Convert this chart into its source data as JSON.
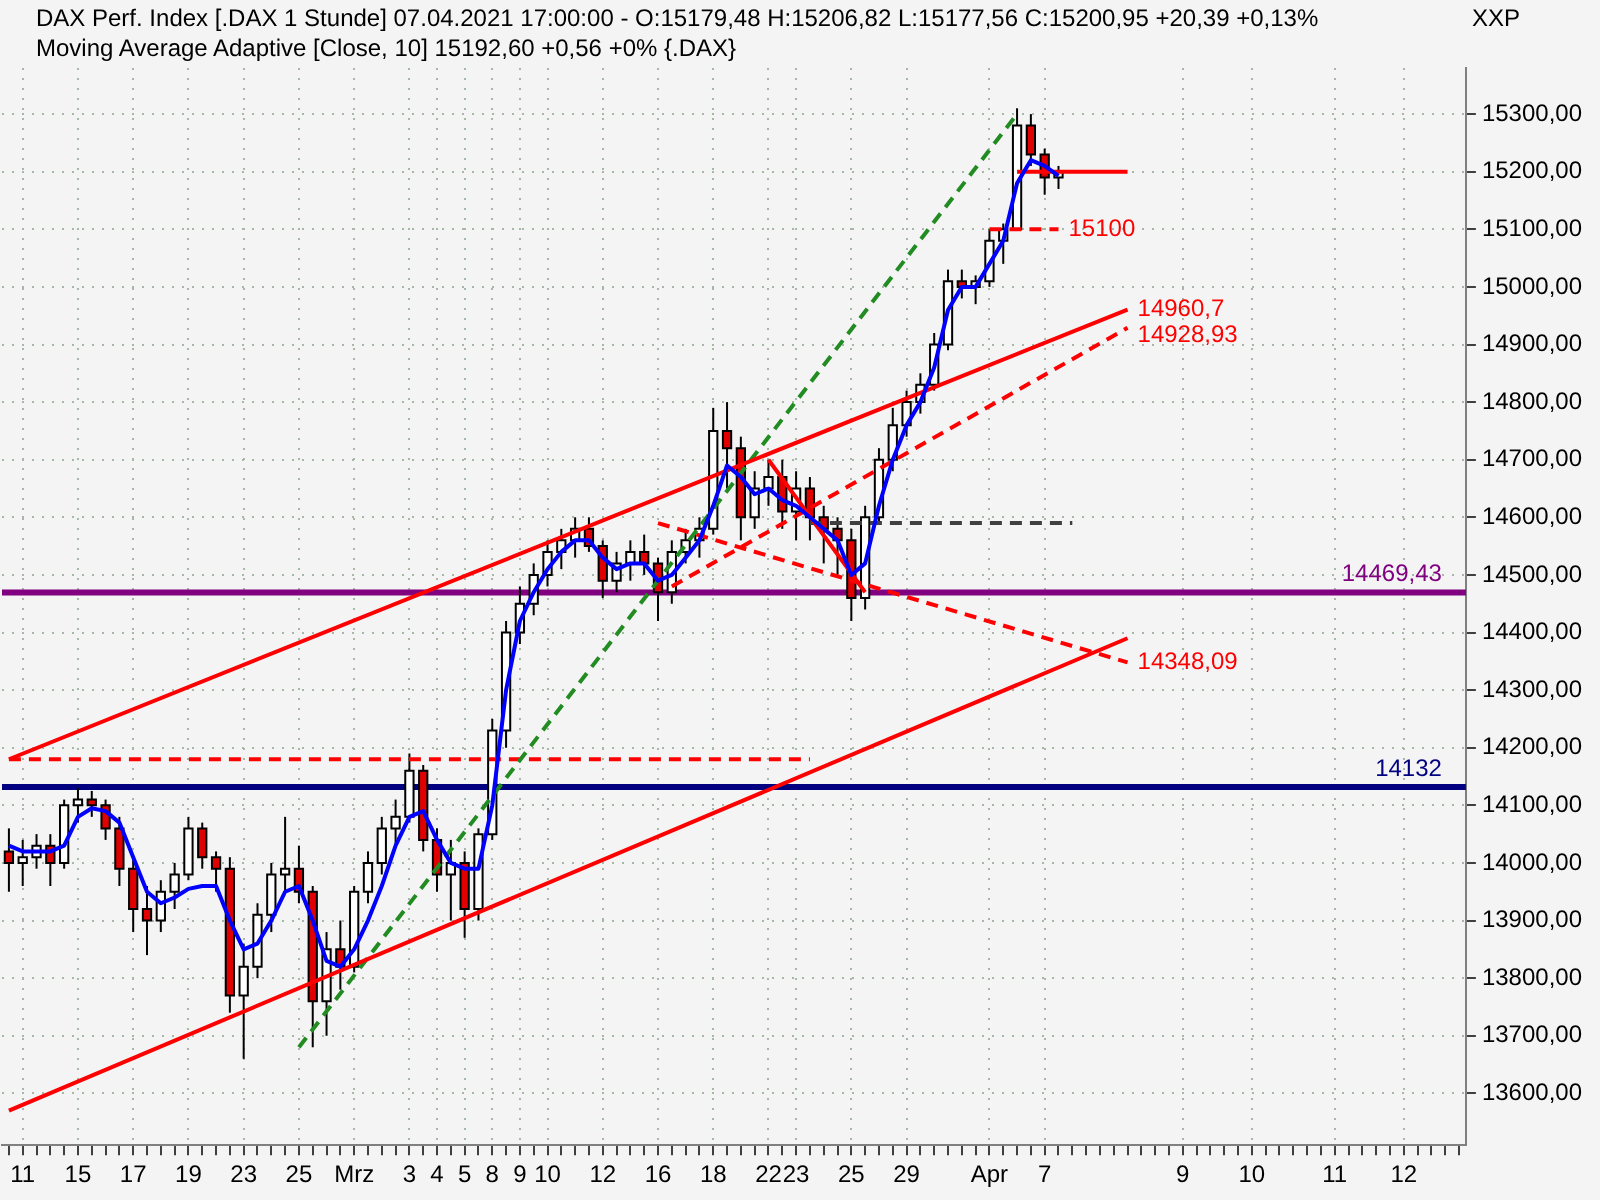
{
  "chart_data": {
    "type": "candlestick",
    "title": "DAX Perf. Index [.DAX  1 Stunde] 07.04.2021 17:00:00 - O:15179,48 H:15206,82 L:15177,56 C:15200,95 +20,39 +0,13%",
    "subtitle": "Moving Average Adaptive [Close, 10] 15192,60 +0,56 +0% {.DAX}",
    "categories": [
      null,
      "11",
      null,
      null,
      null,
      "15",
      null,
      null,
      null,
      "17",
      null,
      null,
      null,
      "19",
      null,
      null,
      null,
      "23",
      null,
      null,
      null,
      "25",
      null,
      null,
      null,
      "Mrz",
      null,
      null,
      null,
      "3",
      null,
      "4",
      null,
      "5",
      null,
      "8",
      null,
      "9",
      null,
      "10",
      null,
      null,
      null,
      "12",
      null,
      null,
      null,
      "16",
      null,
      null,
      null,
      "18",
      null,
      null,
      null,
      "22",
      null,
      "23",
      null,
      null,
      null,
      "25",
      null,
      null,
      null,
      "29",
      null,
      null,
      null,
      null,
      null,
      "Apr",
      null,
      null,
      null,
      "7",
      null,
      null,
      null,
      null,
      null,
      null,
      null,
      null,
      null,
      "9",
      null,
      null,
      null,
      null,
      "10",
      null,
      null,
      null,
      null,
      null,
      "11",
      null,
      null,
      null,
      null,
      "12",
      null,
      null,
      null,
      null
    ],
    "ohlc": [
      [
        14020,
        14060,
        13950,
        14000
      ],
      [
        14000,
        14040,
        13960,
        14010
      ],
      [
        14010,
        14050,
        13990,
        14030
      ],
      [
        14030,
        14050,
        13960,
        14000
      ],
      [
        14000,
        14110,
        13990,
        14100
      ],
      [
        14100,
        14130,
        14070,
        14110
      ],
      [
        14110,
        14125,
        14080,
        14100
      ],
      [
        14100,
        14110,
        14040,
        14060
      ],
      [
        14060,
        14080,
        13960,
        13990
      ],
      [
        13990,
        14010,
        13880,
        13920
      ],
      [
        13920,
        13960,
        13840,
        13900
      ],
      [
        13900,
        13970,
        13880,
        13950
      ],
      [
        13950,
        14000,
        13920,
        13980
      ],
      [
        13980,
        14080,
        13970,
        14060
      ],
      [
        14060,
        14070,
        13990,
        14010
      ],
      [
        14010,
        14020,
        13950,
        13990
      ],
      [
        13990,
        14010,
        13740,
        13770
      ],
      [
        13770,
        13860,
        13660,
        13820
      ],
      [
        13820,
        13930,
        13800,
        13910
      ],
      [
        13910,
        14000,
        13880,
        13980
      ],
      [
        13980,
        14080,
        13950,
        13990
      ],
      [
        13990,
        14030,
        13930,
        13950
      ],
      [
        13950,
        13960,
        13680,
        13760
      ],
      [
        13760,
        13880,
        13700,
        13850
      ],
      [
        13850,
        13900,
        13780,
        13820
      ],
      [
        13820,
        13960,
        13810,
        13950
      ],
      [
        13950,
        14020,
        13930,
        14000
      ],
      [
        14000,
        14080,
        13980,
        14060
      ],
      [
        14060,
        14110,
        14030,
        14080
      ],
      [
        14080,
        14190,
        14070,
        14160
      ],
      [
        14160,
        14170,
        14020,
        14040
      ],
      [
        14040,
        14060,
        13950,
        13980
      ],
      [
        13980,
        14040,
        13900,
        14000
      ],
      [
        14000,
        14020,
        13870,
        13920
      ],
      [
        13920,
        14060,
        13900,
        14050
      ],
      [
        14050,
        14250,
        14040,
        14230
      ],
      [
        14230,
        14420,
        14200,
        14400
      ],
      [
        14400,
        14480,
        14380,
        14450
      ],
      [
        14450,
        14520,
        14430,
        14500
      ],
      [
        14500,
        14560,
        14480,
        14540
      ],
      [
        14540,
        14580,
        14510,
        14560
      ],
      [
        14560,
        14600,
        14530,
        14580
      ],
      [
        14580,
        14600,
        14540,
        14550
      ],
      [
        14550,
        14560,
        14460,
        14490
      ],
      [
        14490,
        14540,
        14470,
        14520
      ],
      [
        14520,
        14560,
        14490,
        14540
      ],
      [
        14540,
        14570,
        14500,
        14520
      ],
      [
        14520,
        14530,
        14420,
        14470
      ],
      [
        14470,
        14560,
        14450,
        14540
      ],
      [
        14540,
        14580,
        14520,
        14560
      ],
      [
        14560,
        14600,
        14530,
        14580
      ],
      [
        14580,
        14790,
        14570,
        14750
      ],
      [
        14750,
        14800,
        14650,
        14720
      ],
      [
        14720,
        14740,
        14560,
        14600
      ],
      [
        14600,
        14680,
        14580,
        14650
      ],
      [
        14650,
        14700,
        14620,
        14670
      ],
      [
        14670,
        14700,
        14580,
        14610
      ],
      [
        14610,
        14680,
        14560,
        14650
      ],
      [
        14650,
        14670,
        14560,
        14600
      ],
      [
        14600,
        14620,
        14520,
        14580
      ],
      [
        14580,
        14600,
        14500,
        14560
      ],
      [
        14560,
        14580,
        14420,
        14460
      ],
      [
        14460,
        14620,
        14440,
        14600
      ],
      [
        14600,
        14720,
        14590,
        14700
      ],
      [
        14700,
        14790,
        14680,
        14760
      ],
      [
        14760,
        14820,
        14740,
        14800
      ],
      [
        14800,
        14850,
        14780,
        14830
      ],
      [
        14830,
        14920,
        14820,
        14900
      ],
      [
        14900,
        15030,
        14890,
        15010
      ],
      [
        15010,
        15030,
        14980,
        15000
      ],
      [
        15000,
        15020,
        14970,
        15010
      ],
      [
        15010,
        15100,
        15000,
        15080
      ],
      [
        15080,
        15110,
        15040,
        15100
      ],
      [
        15100,
        15310,
        15100,
        15280
      ],
      [
        15280,
        15300,
        15210,
        15230
      ],
      [
        15230,
        15240,
        15160,
        15190
      ],
      [
        15190,
        15210,
        15170,
        15200
      ],
      null,
      null,
      null,
      null,
      null,
      null,
      null,
      null,
      null,
      null,
      null,
      null,
      null,
      null,
      null,
      null,
      null,
      null,
      null,
      null,
      null,
      null,
      null,
      null,
      null,
      null,
      null,
      null,
      null
    ],
    "series": [
      {
        "type": "line",
        "color": "#0000ff",
        "line_style": "solid",
        "values": [
          14030,
          14020,
          14020,
          14020,
          14030,
          14080,
          14095,
          14090,
          14070,
          14010,
          13950,
          13930,
          13940,
          13955,
          13960,
          13960,
          13900,
          13850,
          13860,
          13900,
          13950,
          13960,
          13900,
          13830,
          13820,
          13850,
          13900,
          13960,
          14030,
          14080,
          14090,
          14040,
          14000,
          13990,
          13990,
          14100,
          14300,
          14420,
          14470,
          14510,
          14540,
          14560,
          14560,
          14530,
          14510,
          14520,
          14520,
          14490,
          14500,
          14530,
          14560,
          14620,
          14690,
          14670,
          14640,
          14650,
          14630,
          14620,
          14600,
          14580,
          14560,
          14500,
          14520,
          14620,
          14700,
          14760,
          14800,
          14860,
          14960,
          15000,
          15000,
          15040,
          15080,
          15180,
          15220,
          15210,
          15192.6,
          null,
          null,
          null,
          null,
          null,
          null,
          null,
          null,
          null,
          null,
          null,
          null,
          null,
          null,
          null,
          null,
          null,
          null,
          null,
          null,
          null,
          null,
          null,
          null,
          null,
          null,
          null,
          null,
          null
        ]
      },
      {
        "type": "line",
        "color": "#ff0000",
        "line_style": "solid",
        "values": [
          14180,
          null,
          null,
          null,
          null,
          null,
          null,
          null,
          null,
          null,
          null,
          null,
          null,
          null,
          null,
          null,
          null,
          null,
          null,
          null,
          null,
          null,
          null,
          null,
          null,
          null,
          null,
          null,
          null,
          null,
          null,
          null,
          null,
          null,
          null,
          null,
          null,
          null,
          null,
          null,
          null,
          null,
          null,
          null,
          null,
          null,
          null,
          null,
          null,
          null,
          null,
          null,
          null,
          null,
          null,
          null,
          null,
          null,
          null,
          null,
          null,
          null,
          null,
          null,
          null,
          null,
          null,
          null,
          null,
          null,
          null,
          null,
          null,
          null,
          null,
          null,
          null,
          null,
          null,
          null,
          null,
          14960.7,
          null,
          null,
          null,
          null,
          null,
          null,
          null,
          null,
          null,
          null,
          null,
          null,
          null,
          null,
          null,
          null,
          null,
          null,
          null,
          null,
          null,
          null,
          null,
          null
        ],
        "value_labels": [
          null,
          null,
          null,
          null,
          null,
          null,
          null,
          null,
          null,
          null,
          null,
          null,
          null,
          null,
          null,
          null,
          null,
          null,
          null,
          null,
          null,
          null,
          null,
          null,
          null,
          null,
          null,
          null,
          null,
          null,
          null,
          null,
          null,
          null,
          null,
          null,
          null,
          null,
          null,
          null,
          null,
          null,
          null,
          null,
          null,
          null,
          null,
          null,
          null,
          null,
          null,
          null,
          null,
          null,
          null,
          null,
          null,
          null,
          null,
          null,
          null,
          null,
          null,
          null,
          null,
          null,
          null,
          null,
          null,
          null,
          null,
          null,
          null,
          null,
          null,
          null,
          null,
          null,
          null,
          null,
          null,
          "14960,7",
          null,
          null,
          null,
          null,
          null,
          null,
          null,
          null,
          null,
          null,
          null,
          null,
          null,
          null,
          null,
          null,
          null,
          null,
          null,
          null,
          null,
          null,
          null,
          null
        ]
      },
      {
        "type": "line",
        "color": "#ff0000",
        "line_style": "solid",
        "values": [
          13570,
          null,
          null,
          null,
          null,
          null,
          null,
          null,
          null,
          null,
          null,
          null,
          null,
          null,
          null,
          null,
          null,
          null,
          null,
          null,
          null,
          null,
          null,
          null,
          null,
          null,
          null,
          null,
          null,
          null,
          null,
          null,
          null,
          null,
          null,
          null,
          null,
          null,
          null,
          null,
          null,
          null,
          null,
          null,
          null,
          null,
          null,
          null,
          null,
          null,
          null,
          null,
          null,
          null,
          null,
          null,
          null,
          null,
          null,
          null,
          null,
          null,
          null,
          null,
          null,
          null,
          null,
          null,
          null,
          null,
          null,
          null,
          null,
          null,
          null,
          null,
          null,
          null,
          null,
          null,
          null,
          14390,
          null,
          null,
          null,
          null,
          null,
          null,
          null,
          null,
          null,
          null,
          null,
          null,
          null,
          null,
          null,
          null,
          null,
          null,
          null,
          null,
          null,
          null,
          null,
          null
        ]
      },
      {
        "type": "line",
        "color": "#228b22",
        "line_style": "dashed",
        "values": [
          null,
          null,
          null,
          null,
          null,
          null,
          null,
          null,
          null,
          null,
          null,
          null,
          null,
          null,
          null,
          null,
          null,
          null,
          null,
          null,
          null,
          13680,
          null,
          null,
          null,
          null,
          null,
          null,
          null,
          null,
          null,
          null,
          null,
          null,
          null,
          null,
          null,
          null,
          null,
          null,
          null,
          null,
          null,
          null,
          null,
          null,
          null,
          null,
          null,
          null,
          null,
          null,
          null,
          null,
          null,
          null,
          null,
          null,
          null,
          null,
          null,
          null,
          null,
          null,
          null,
          null,
          null,
          null,
          null,
          null,
          null,
          null,
          null,
          15300,
          null,
          null,
          null,
          null,
          null,
          null,
          null,
          null,
          null,
          null,
          null,
          null,
          null,
          null,
          null,
          null,
          null,
          null,
          null,
          null,
          null,
          null,
          null,
          null,
          null,
          null,
          null,
          null,
          null,
          null,
          null,
          null
        ]
      },
      {
        "type": "line",
        "color": "#ff0000",
        "line_style": "dashed",
        "values": [
          14180,
          null,
          null,
          null,
          null,
          null,
          null,
          null,
          null,
          null,
          null,
          null,
          null,
          null,
          null,
          null,
          null,
          null,
          null,
          null,
          null,
          null,
          null,
          null,
          null,
          null,
          null,
          null,
          null,
          null,
          null,
          null,
          null,
          null,
          null,
          null,
          null,
          null,
          null,
          null,
          null,
          null,
          null,
          null,
          null,
          null,
          null,
          null,
          null,
          null,
          null,
          null,
          null,
          null,
          null,
          null,
          null,
          null,
          14180,
          null,
          null,
          null,
          null,
          null,
          null,
          null,
          null,
          null,
          null,
          null,
          null,
          null,
          null,
          null,
          null,
          null,
          null,
          null,
          null,
          null,
          null,
          null,
          null,
          null,
          null,
          null,
          null,
          null,
          null,
          null,
          null,
          null,
          null,
          null,
          null,
          null,
          null,
          null,
          null,
          null,
          null,
          null,
          null,
          null,
          null,
          null
        ]
      },
      {
        "type": "line",
        "color": "#ff0000",
        "line_style": "dashed",
        "values": [
          null,
          null,
          null,
          null,
          null,
          null,
          null,
          null,
          null,
          null,
          null,
          null,
          null,
          null,
          null,
          null,
          null,
          null,
          null,
          null,
          null,
          null,
          null,
          null,
          null,
          null,
          null,
          null,
          null,
          null,
          null,
          null,
          null,
          null,
          null,
          null,
          null,
          null,
          null,
          null,
          null,
          null,
          null,
          null,
          null,
          null,
          null,
          null,
          null,
          null,
          null,
          null,
          null,
          null,
          null,
          null,
          null,
          null,
          null,
          null,
          null,
          null,
          null,
          null,
          null,
          null,
          null,
          null,
          null,
          null,
          null,
          15100,
          null,
          null,
          null,
          null,
          15100,
          null,
          null,
          null,
          null,
          null,
          null,
          null,
          null,
          null,
          null,
          null,
          null,
          null,
          null,
          null,
          null,
          null,
          null,
          null,
          null,
          null,
          null,
          null,
          null,
          null,
          null,
          null,
          null,
          null
        ],
        "value_labels": [
          null,
          null,
          null,
          null,
          null,
          null,
          null,
          null,
          null,
          null,
          null,
          null,
          null,
          null,
          null,
          null,
          null,
          null,
          null,
          null,
          null,
          null,
          null,
          null,
          null,
          null,
          null,
          null,
          null,
          null,
          null,
          null,
          null,
          null,
          null,
          null,
          null,
          null,
          null,
          null,
          null,
          null,
          null,
          null,
          null,
          null,
          null,
          null,
          null,
          null,
          null,
          null,
          null,
          null,
          null,
          null,
          null,
          null,
          null,
          null,
          null,
          null,
          null,
          null,
          null,
          null,
          null,
          null,
          null,
          null,
          null,
          null,
          null,
          null,
          null,
          null,
          "15100",
          null,
          null,
          null,
          null,
          null,
          null,
          null,
          null,
          null,
          null,
          null,
          null,
          null,
          null,
          null,
          null,
          null,
          null,
          null,
          null,
          null,
          null,
          null,
          null,
          null,
          null,
          null,
          null,
          null
        ]
      },
      {
        "type": "line",
        "color": "#ff0000",
        "line_style": "solid",
        "values": [
          null,
          null,
          null,
          null,
          null,
          null,
          null,
          null,
          null,
          null,
          null,
          null,
          null,
          null,
          null,
          null,
          null,
          null,
          null,
          null,
          null,
          null,
          null,
          null,
          null,
          null,
          null,
          null,
          null,
          null,
          null,
          null,
          null,
          null,
          null,
          null,
          null,
          null,
          null,
          null,
          null,
          null,
          null,
          null,
          null,
          null,
          null,
          null,
          null,
          null,
          null,
          null,
          null,
          null,
          null,
          null,
          null,
          null,
          null,
          null,
          null,
          null,
          null,
          null,
          null,
          null,
          null,
          null,
          null,
          null,
          null,
          null,
          null,
          15200,
          null,
          null,
          null,
          null,
          null,
          null,
          null,
          15200,
          null,
          null,
          null,
          null,
          null,
          null,
          null,
          null,
          null,
          null,
          null,
          null,
          null,
          null,
          null,
          null,
          null,
          null,
          null,
          null,
          null,
          null,
          null,
          null
        ]
      },
      {
        "type": "line",
        "color": "#ff0000",
        "line_style": "dashed",
        "values": [
          null,
          null,
          null,
          null,
          null,
          null,
          null,
          null,
          null,
          null,
          null,
          null,
          null,
          null,
          null,
          null,
          null,
          null,
          null,
          null,
          null,
          null,
          null,
          null,
          null,
          null,
          null,
          null,
          null,
          null,
          null,
          null,
          null,
          null,
          null,
          null,
          null,
          null,
          null,
          null,
          null,
          null,
          null,
          null,
          null,
          null,
          null,
          14590,
          null,
          null,
          null,
          null,
          null,
          null,
          null,
          null,
          null,
          null,
          null,
          null,
          null,
          null,
          null,
          null,
          null,
          null,
          null,
          null,
          null,
          null,
          null,
          null,
          null,
          null,
          null,
          null,
          null,
          null,
          null,
          null,
          null,
          14348.09,
          null,
          null,
          null,
          null,
          null,
          null,
          null,
          null,
          null,
          null,
          null,
          null,
          null,
          null,
          null,
          null,
          null,
          null,
          null,
          null,
          null,
          null,
          null,
          null
        ],
        "value_labels": [
          null,
          null,
          null,
          null,
          null,
          null,
          null,
          null,
          null,
          null,
          null,
          null,
          null,
          null,
          null,
          null,
          null,
          null,
          null,
          null,
          null,
          null,
          null,
          null,
          null,
          null,
          null,
          null,
          null,
          null,
          null,
          null,
          null,
          null,
          null,
          null,
          null,
          null,
          null,
          null,
          null,
          null,
          null,
          null,
          null,
          null,
          null,
          null,
          null,
          null,
          null,
          null,
          null,
          null,
          null,
          null,
          null,
          null,
          null,
          null,
          null,
          null,
          null,
          null,
          null,
          null,
          null,
          null,
          null,
          null,
          null,
          null,
          null,
          null,
          null,
          null,
          null,
          null,
          null,
          null,
          null,
          "14348,09",
          null,
          null,
          null,
          null,
          null,
          null,
          null,
          null,
          null,
          null,
          null,
          null,
          null,
          null,
          null,
          null,
          null,
          null,
          null,
          null,
          null,
          null,
          null,
          null
        ]
      },
      {
        "type": "line",
        "color": "#ff0000",
        "line_style": "dashed",
        "values": [
          null,
          null,
          null,
          null,
          null,
          null,
          null,
          null,
          null,
          null,
          null,
          null,
          null,
          null,
          null,
          null,
          null,
          null,
          null,
          null,
          null,
          null,
          null,
          null,
          null,
          null,
          null,
          null,
          null,
          null,
          null,
          null,
          null,
          null,
          null,
          null,
          null,
          null,
          null,
          null,
          null,
          null,
          null,
          null,
          null,
          null,
          null,
          null,
          14480,
          null,
          null,
          null,
          null,
          null,
          null,
          null,
          null,
          null,
          null,
          null,
          null,
          null,
          null,
          null,
          null,
          null,
          null,
          null,
          null,
          null,
          null,
          null,
          null,
          null,
          null,
          null,
          null,
          null,
          null,
          null,
          null,
          14928.93,
          null,
          null,
          null,
          null,
          null,
          null,
          null,
          null,
          null,
          null,
          null,
          null,
          null,
          null,
          null,
          null,
          null,
          null,
          null,
          null,
          null,
          null,
          null,
          null
        ],
        "value_labels": [
          null,
          null,
          null,
          null,
          null,
          null,
          null,
          null,
          null,
          null,
          null,
          null,
          null,
          null,
          null,
          null,
          null,
          null,
          null,
          null,
          null,
          null,
          null,
          null,
          null,
          null,
          null,
          null,
          null,
          null,
          null,
          null,
          null,
          null,
          null,
          null,
          null,
          null,
          null,
          null,
          null,
          null,
          null,
          null,
          null,
          null,
          null,
          null,
          null,
          null,
          null,
          null,
          null,
          null,
          null,
          null,
          null,
          null,
          null,
          null,
          null,
          null,
          null,
          null,
          null,
          null,
          null,
          null,
          null,
          null,
          null,
          null,
          null,
          null,
          null,
          null,
          null,
          null,
          null,
          null,
          null,
          "14928,93",
          null,
          null,
          null,
          null,
          null,
          null,
          null,
          null,
          null,
          null,
          null,
          null,
          null,
          null,
          null,
          null,
          null,
          null,
          null,
          null,
          null,
          null,
          null,
          null
        ]
      },
      {
        "type": "line",
        "color": "#ff0000",
        "line_style": "solid",
        "values": [
          null,
          null,
          null,
          null,
          null,
          null,
          null,
          null,
          null,
          null,
          null,
          null,
          null,
          null,
          null,
          null,
          null,
          null,
          null,
          null,
          null,
          null,
          null,
          null,
          null,
          null,
          null,
          null,
          null,
          null,
          null,
          null,
          null,
          null,
          null,
          null,
          null,
          null,
          null,
          null,
          null,
          null,
          null,
          null,
          null,
          null,
          null,
          null,
          null,
          null,
          null,
          null,
          null,
          null,
          null,
          14700,
          null,
          null,
          null,
          null,
          null,
          null,
          14470,
          null,
          null,
          null,
          null,
          null,
          null,
          null,
          null,
          null,
          null,
          null,
          null,
          null,
          null,
          null,
          null,
          null,
          null,
          null,
          null,
          null,
          null,
          null,
          null,
          null,
          null,
          null,
          null,
          null,
          null,
          null,
          null,
          null,
          null,
          null,
          null,
          null,
          null,
          null,
          null,
          null,
          null,
          null
        ]
      },
      {
        "type": "line",
        "color": "#404040",
        "line_style": "dashed",
        "values": [
          null,
          null,
          null,
          null,
          null,
          null,
          null,
          null,
          null,
          null,
          null,
          null,
          null,
          null,
          null,
          null,
          null,
          null,
          null,
          null,
          null,
          null,
          null,
          null,
          null,
          null,
          null,
          null,
          null,
          null,
          null,
          null,
          null,
          null,
          null,
          null,
          null,
          null,
          null,
          null,
          null,
          null,
          null,
          null,
          null,
          null,
          null,
          null,
          null,
          null,
          null,
          null,
          null,
          null,
          null,
          null,
          null,
          null,
          14590,
          null,
          null,
          null,
          null,
          null,
          null,
          null,
          null,
          null,
          null,
          null,
          null,
          null,
          null,
          null,
          null,
          null,
          null,
          14590,
          null,
          null,
          null,
          null,
          null,
          null,
          null,
          null,
          null,
          null,
          null,
          null,
          null,
          null,
          null,
          null,
          null,
          null,
          null,
          null,
          null,
          null,
          null,
          null,
          null,
          null,
          null,
          null
        ]
      }
    ],
    "ylim": [
      13510,
      15380
    ],
    "yticks": [
      {
        "value": 13600,
        "label": "13600,00"
      },
      {
        "value": 13700,
        "label": "13700,00"
      },
      {
        "value": 13800,
        "label": "13800,00"
      },
      {
        "value": 13900,
        "label": "13900,00"
      },
      {
        "value": 14000,
        "label": "14000,00"
      },
      {
        "value": 14100,
        "label": "14100,00"
      },
      {
        "value": 14200,
        "label": "14200,00"
      },
      {
        "value": 14300,
        "label": "14300,00"
      },
      {
        "value": 14400,
        "label": "14400,00"
      },
      {
        "value": 14500,
        "label": "14500,00"
      },
      {
        "value": 14600,
        "label": "14600,00"
      },
      {
        "value": 14700,
        "label": "14700,00"
      },
      {
        "value": 14800,
        "label": "14800,00"
      },
      {
        "value": 14900,
        "label": "14900,00"
      },
      {
        "value": 15000,
        "label": "15000,00"
      },
      {
        "value": 15100,
        "label": "15100,00"
      },
      {
        "value": 15200,
        "label": "15200,00"
      },
      {
        "value": 15300,
        "label": "15300,00"
      }
    ],
    "ref_lines": [
      {
        "axis": "y",
        "value": 14469.43,
        "label": "14469,43",
        "color": "#800080"
      },
      {
        "axis": "y",
        "value": 14132,
        "label": "14132",
        "color": "#000080"
      }
    ],
    "annotations": [
      "XXP"
    ],
    "grid": true,
    "legend": false,
    "marker": "none"
  }
}
